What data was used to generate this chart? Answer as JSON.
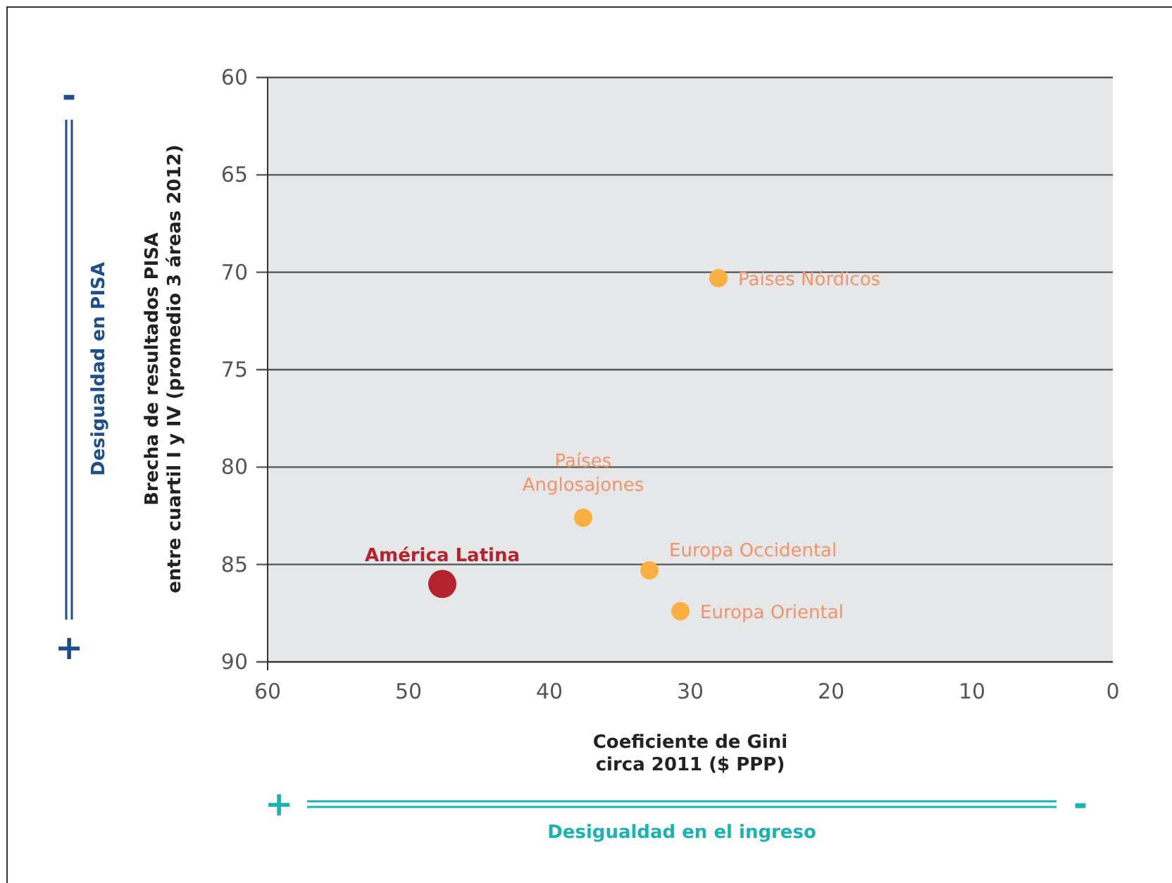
{
  "chart_data": {
    "type": "bubble",
    "xlabel": "Coeficiente de Gini\ncirca 2011 ($ PPP)",
    "ylabel": "Brecha de resultados PISA\nentre cuartil I y IV (promedio 3 áreas 2012)",
    "xlim": [
      60,
      0
    ],
    "xticks": [
      60,
      50,
      40,
      30,
      20,
      10,
      0
    ],
    "ylim": [
      90,
      60
    ],
    "yticks": [
      60,
      65,
      70,
      75,
      80,
      85,
      90
    ],
    "grid": "y",
    "series": [
      {
        "name": "Países Nórdicos",
        "color": "#f9b040",
        "x": [
          28.0
        ],
        "values": [
          70.3
        ],
        "sizes": [
          0.42
        ]
      },
      {
        "name": "Países\nAnglosajones",
        "color": "#f9b040",
        "x": [
          37.6
        ],
        "values": [
          82.6
        ],
        "sizes": [
          0.42
        ]
      },
      {
        "name": "Europa Occidental",
        "color": "#f9b040",
        "x": [
          32.9
        ],
        "values": [
          85.3
        ],
        "sizes": [
          0.42
        ]
      },
      {
        "name": "Europa Oriental",
        "color": "#f9b040",
        "x": [
          30.7
        ],
        "values": [
          87.4
        ],
        "sizes": [
          0.42
        ]
      },
      {
        "name": "América Latina",
        "color": "#b5232e",
        "x": [
          47.6
        ],
        "values": [
          86.0
        ],
        "sizes": [
          1
        ]
      }
    ],
    "annotations": [
      "-",
      "+",
      "Desigualdad en PISA",
      "+",
      "-",
      "Desigualdad en el ingreso"
    ]
  }
}
